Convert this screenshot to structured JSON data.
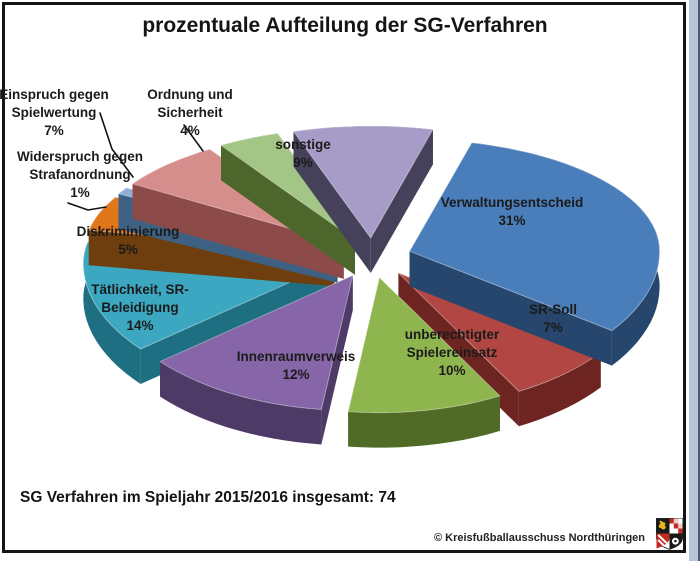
{
  "title": "prozentuale Aufteilung der SG-Verfahren",
  "caption": {
    "text": "SG Verfahren im Spieljahr 2015/2016 insgesamt: 74"
  },
  "footer": {
    "copyright": "© Kreisfußballausschuss Nordthüringen",
    "logo_name": "nordthueringen-coat-of-arms"
  },
  "chart_data": {
    "type": "pie",
    "style": "3d-exploded",
    "title": "prozentuale Aufteilung der SG-Verfahren",
    "unit": "%",
    "total": 74,
    "total_note": "SG Verfahren im Spieljahr 2015/2016 insgesamt: 74",
    "start_angle_deg": -18,
    "direction": "clockwise",
    "slices": [
      {
        "key": "sonstige",
        "label": "sonstige",
        "value": 9,
        "lines": [
          "sonstige",
          "9%"
        ],
        "color": "#A79CC8",
        "side_color": "#46415A"
      },
      {
        "key": "verwaltungsentscheid",
        "label": "Verwaltungsentscheid",
        "value": 31,
        "lines": [
          "Verwaltungsentscheid",
          "31%"
        ],
        "color": "#4A7EBB",
        "side_color": "#26466D"
      },
      {
        "key": "sr-soll",
        "label": "SR-Soll",
        "value": 7,
        "lines": [
          "SR-Soll",
          "7%"
        ],
        "color": "#B14642",
        "side_color": "#6E2522"
      },
      {
        "key": "unberechtigter-spielereinsatz",
        "label": "unberechtigter Spielereinsatz",
        "value": 10,
        "lines": [
          "unberechtigter",
          "Spielereinsatz",
          "10%"
        ],
        "color": "#8FB54E",
        "side_color": "#4F6B25"
      },
      {
        "key": "innenraumverweis",
        "label": "Innenraumverweis",
        "value": 12,
        "lines": [
          "Innenraumverweis",
          "12%"
        ],
        "color": "#8666A8",
        "side_color": "#4E3A66"
      },
      {
        "key": "taetlichkeit-sr-beleidigung",
        "label": "Tätlichkeit, SR-Beleidigung",
        "value": 14,
        "lines": [
          "Tätlichkeit, SR-",
          "Beleidigung",
          "14%"
        ],
        "color": "#3BA7C0",
        "side_color": "#1F6F82"
      },
      {
        "key": "diskriminierung",
        "label": "Diskriminierung",
        "value": 5,
        "lines": [
          "Diskriminierung",
          "5%"
        ],
        "color": "#E2761B",
        "side_color": "#6E3E0F"
      },
      {
        "key": "widerspruch-gegen-strafanordnung",
        "label": "Widerspruch gegen Strafanordnung",
        "value": 1,
        "lines": [
          "Widerspruch gegen",
          "Strafanordnung",
          "1%"
        ],
        "color": "#8FAFD4",
        "side_color": "#3E6183"
      },
      {
        "key": "einspruch-gegen-spielwertung",
        "label": "Einspruch gegen Spielwertung",
        "value": 7,
        "lines": [
          "Einspruch gegen",
          "Spielwertung",
          "7%"
        ],
        "color": "#D68E8C",
        "side_color": "#8C4A48"
      },
      {
        "key": "ordnung-und-sicherheit",
        "label": "Ordnung und Sicherheit",
        "value": 4,
        "lines": [
          "Ordnung und",
          "Sicherheit",
          "4%"
        ],
        "color": "#A3C585",
        "side_color": "#4C662B"
      }
    ]
  }
}
